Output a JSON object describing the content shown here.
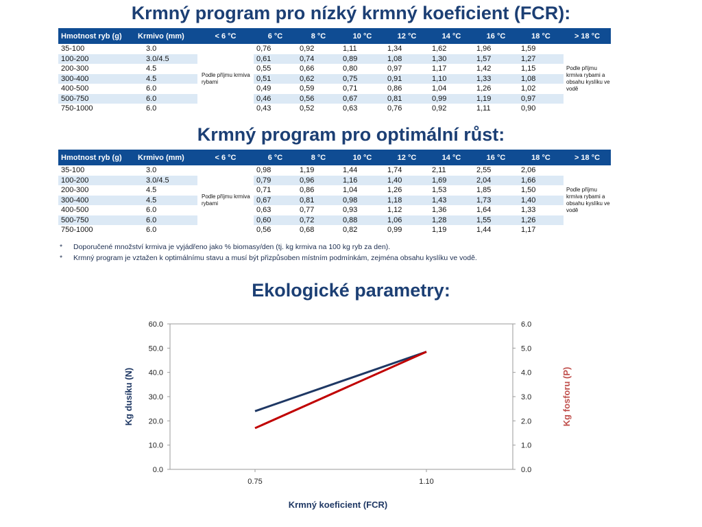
{
  "title1": "Krmný program pro nízký krmný koeficient (FCR):",
  "title2": "Krmný program pro optimální růst:",
  "title3": "Ekologické parametry:",
  "headers": [
    "Hmotnost ryb (g)",
    "Krmivo (mm)",
    "< 6 °C",
    "6 °C",
    "8 °C",
    "10 °C",
    "12 °C",
    "14 °C",
    "16 °C",
    "18 °C",
    "> 18 °C"
  ],
  "note_cold": "Podle příjmu krmiva rybami",
  "note_warm": "Podle příjmu krmiva rybami a obsahu kyslíku ve vodě",
  "table1": {
    "rows": [
      {
        "weight": "35-100",
        "pellet": "3.0",
        "v": [
          "0,76",
          "0,92",
          "1,11",
          "1,34",
          "1,62",
          "1,96",
          "1,59"
        ]
      },
      {
        "weight": "100-200",
        "pellet": "3.0/4.5",
        "v": [
          "0,61",
          "0,74",
          "0,89",
          "1,08",
          "1,30",
          "1,57",
          "1,27"
        ]
      },
      {
        "weight": "200-300",
        "pellet": "4.5",
        "v": [
          "0,55",
          "0,66",
          "0,80",
          "0,97",
          "1,17",
          "1,42",
          "1,15"
        ]
      },
      {
        "weight": "300-400",
        "pellet": "4.5",
        "v": [
          "0,51",
          "0,62",
          "0,75",
          "0,91",
          "1,10",
          "1,33",
          "1,08"
        ]
      },
      {
        "weight": "400-500",
        "pellet": "6.0",
        "v": [
          "0,49",
          "0,59",
          "0,71",
          "0,86",
          "1,04",
          "1,26",
          "1,02"
        ]
      },
      {
        "weight": "500-750",
        "pellet": "6.0",
        "v": [
          "0,46",
          "0,56",
          "0,67",
          "0,81",
          "0,99",
          "1,19",
          "0,97"
        ]
      },
      {
        "weight": "750-1000",
        "pellet": "6.0",
        "v": [
          "0,43",
          "0,52",
          "0,63",
          "0,76",
          "0,92",
          "1,11",
          "0,90"
        ]
      }
    ]
  },
  "table2": {
    "rows": [
      {
        "weight": "35-100",
        "pellet": "3.0",
        "v": [
          "0,98",
          "1,19",
          "1,44",
          "1,74",
          "2,11",
          "2,55",
          "2,06"
        ]
      },
      {
        "weight": "100-200",
        "pellet": "3.0/4.5",
        "v": [
          "0,79",
          "0,96",
          "1,16",
          "1,40",
          "1,69",
          "2,04",
          "1,66"
        ]
      },
      {
        "weight": "200-300",
        "pellet": "4.5",
        "v": [
          "0,71",
          "0,86",
          "1,04",
          "1,26",
          "1,53",
          "1,85",
          "1,50"
        ]
      },
      {
        "weight": "300-400",
        "pellet": "4.5",
        "v": [
          "0,67",
          "0,81",
          "0,98",
          "1,18",
          "1,43",
          "1,73",
          "1,40"
        ]
      },
      {
        "weight": "400-500",
        "pellet": "6.0",
        "v": [
          "0,63",
          "0,77",
          "0,93",
          "1,12",
          "1,36",
          "1,64",
          "1,33"
        ]
      },
      {
        "weight": "500-750",
        "pellet": "6.0",
        "v": [
          "0,60",
          "0,72",
          "0,88",
          "1,06",
          "1,28",
          "1,55",
          "1,26"
        ]
      },
      {
        "weight": "750-1000",
        "pellet": "6.0",
        "v": [
          "0,56",
          "0,68",
          "0,82",
          "0,99",
          "1,19",
          "1,44",
          "1,17"
        ]
      }
    ]
  },
  "footnotes": [
    "Doporučené množství krmiva je vyjádřeno jako % biomasy/den (tj. kg krmiva na 100 kg ryb za den).",
    "Krmný program je vztažen k optimálnímu stavu a musí být přizpůsoben místním podmínkám, zejména obsahu kyslíku ve vodě."
  ],
  "footnote_marker": "*",
  "colors": {
    "header": "#0f4c93",
    "stripe": "#dce9f5",
    "title": "#1c3f74",
    "nitrogen": "#1f3864",
    "phosphorus": "#c00000",
    "right_axis_label": "#c0504d"
  },
  "chart_data": {
    "type": "line",
    "xlabel": "Krmný koeficient (FCR)",
    "categories": [
      "0.75",
      "1.10"
    ],
    "y_left": {
      "label": "Kg dusíku (N)",
      "ticks": [
        "0.0",
        "10.0",
        "20.0",
        "30.0",
        "40.0",
        "50.0",
        "60.0"
      ],
      "ylim": [
        0,
        60
      ]
    },
    "y_right": {
      "label": "Kg fosforu (P)",
      "ticks": [
        "0.0",
        "1.0",
        "2.0",
        "3.0",
        "4.0",
        "5.0",
        "6.0"
      ],
      "ylim": [
        0,
        6
      ]
    },
    "series": [
      {
        "axis": "left",
        "color": "#1f3864",
        "values": [
          24,
          48.5
        ]
      },
      {
        "axis": "right",
        "color": "#c00000",
        "values": [
          1.7,
          4.85
        ]
      }
    ],
    "legend": "none",
    "grid": false
  }
}
